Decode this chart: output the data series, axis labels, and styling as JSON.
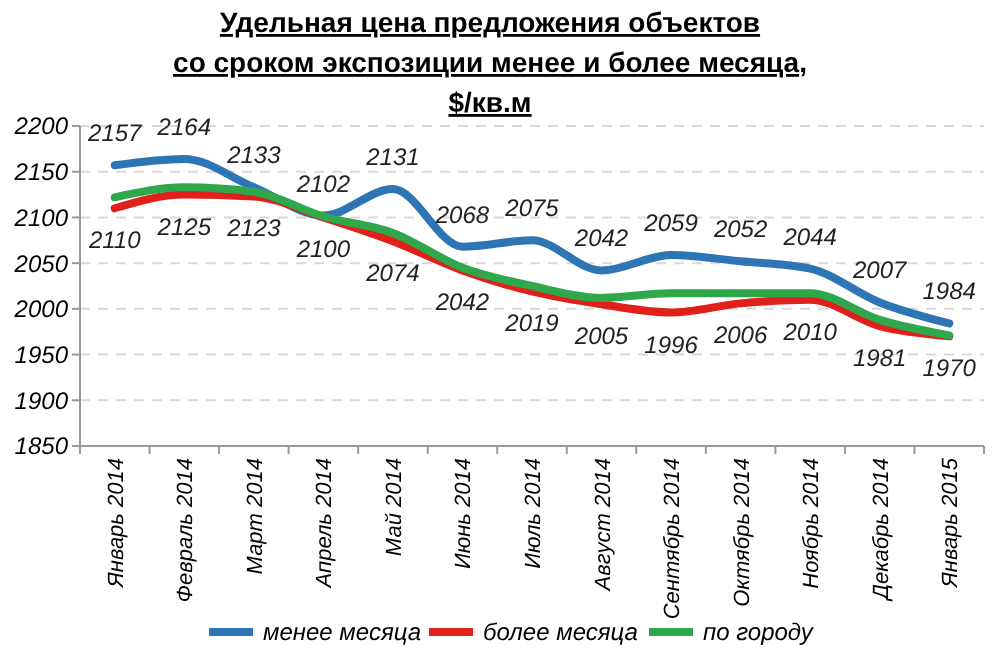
{
  "chart_data": {
    "type": "line",
    "title": "Удельная цена предложения  объектов\nсо сроком экспозиции менее и более месяца,\n$/кв.м",
    "categories": [
      "Январь 2014",
      "Февраль 2014",
      "Март 2014",
      "Апрель 2014",
      "Май 2014",
      "Июнь 2014",
      "Июль 2014",
      "Август 2014",
      "Сентябрь 2014",
      "Октябрь 2014",
      "Ноябрь 2014",
      "Декабрь 2014",
      "Январь 2015"
    ],
    "series": [
      {
        "name": "менее месяца",
        "color": "#2e75b6",
        "values": [
          2157,
          2164,
          2133,
          2102,
          2131,
          2068,
          2075,
          2042,
          2059,
          2052,
          2044,
          2007,
          1984
        ],
        "value_labels": [
          "2157",
          "2164",
          "2133",
          "2102",
          "2131",
          "2068",
          "2075",
          "2042",
          "2059",
          "2052",
          "2044",
          "2007",
          "1984"
        ]
      },
      {
        "name": "более месяца",
        "color": "#e0201b",
        "values": [
          2110,
          2125,
          2123,
          2100,
          2074,
          2042,
          2019,
          2005,
          1996,
          2006,
          2010,
          1981,
          1970
        ],
        "value_labels": [
          "2110",
          "2125",
          "2123",
          "2100",
          "2074",
          "2042",
          "2019",
          "2005",
          "1996",
          "2006",
          "2010",
          "1981",
          "1970"
        ]
      },
      {
        "name": "по городу",
        "color": "#2ea84a",
        "values": [
          2122,
          2133,
          2128,
          2101,
          2083,
          2045,
          2025,
          2012,
          2017,
          2017,
          2017,
          1988,
          1971
        ]
      }
    ],
    "ylim": [
      1850,
      2200
    ],
    "yticks": [
      1850,
      1900,
      1950,
      2000,
      2050,
      2100,
      2150,
      2200
    ],
    "grid": "y",
    "legend": "bottom",
    "marker": "none",
    "line_style": "solid"
  }
}
